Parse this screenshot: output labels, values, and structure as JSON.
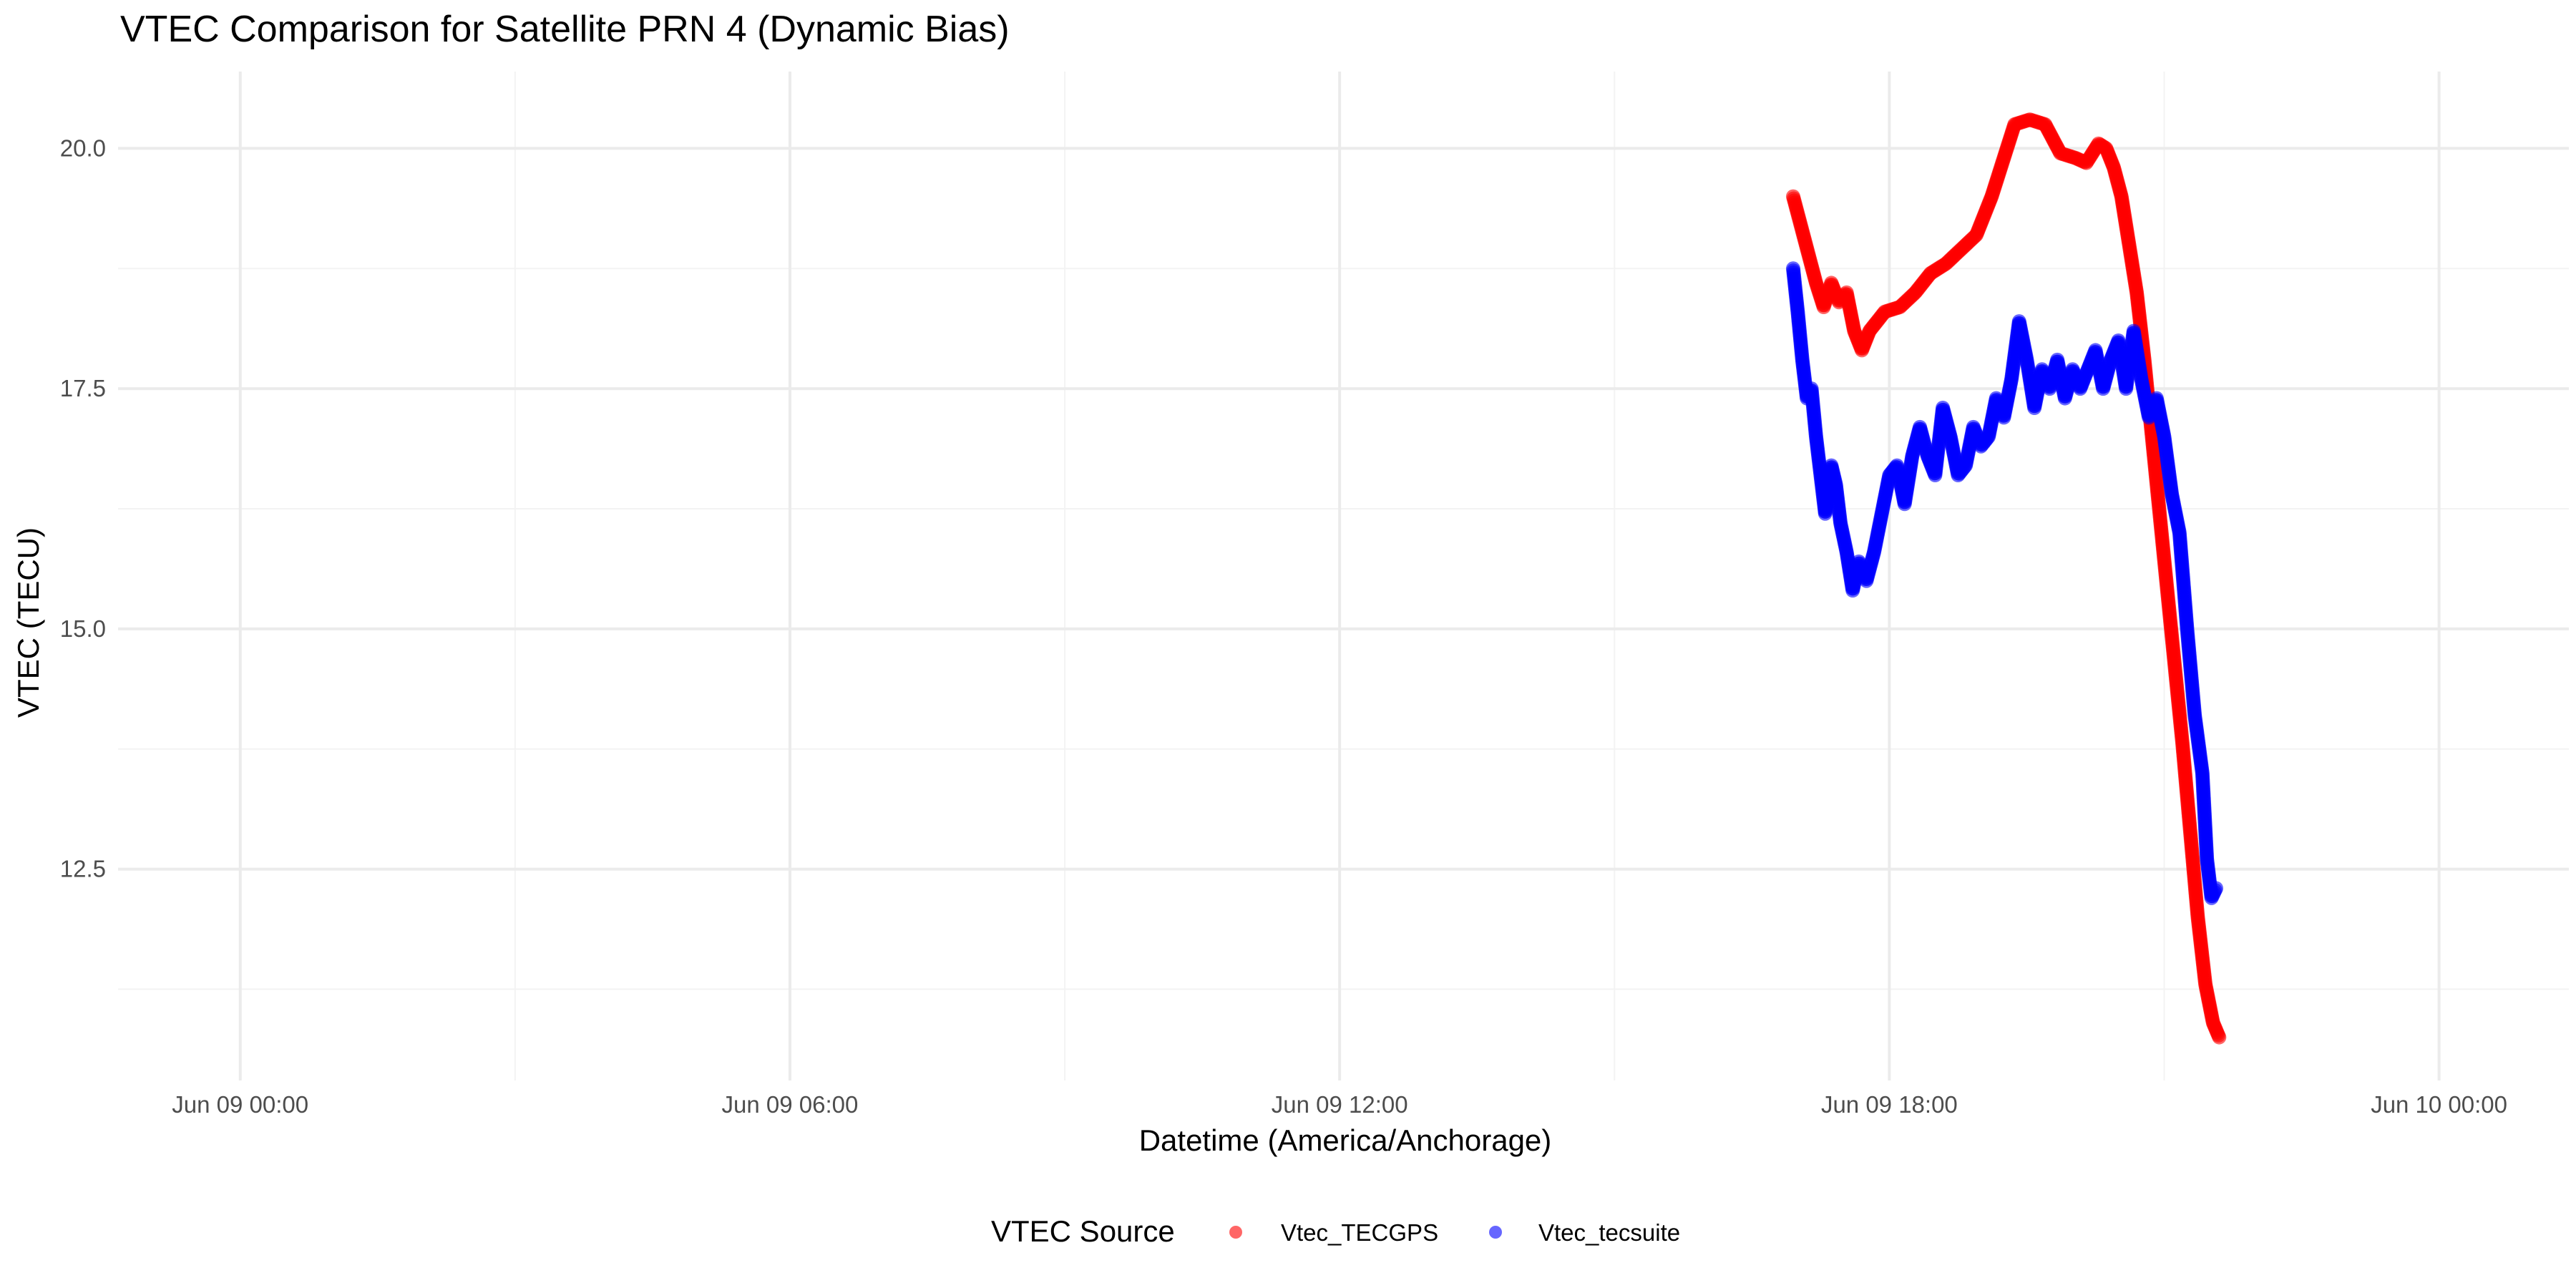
{
  "chart_data": {
    "type": "scatter",
    "title": "VTEC Comparison for Satellite PRN 4 (Dynamic Bias)",
    "xlabel": "Datetime (America/Anchorage)",
    "ylabel": "VTEC (TECU)",
    "x_axis_type": "datetime",
    "xlim": [
      "2024-06-08 22:40",
      "2024-06-10 01:25"
    ],
    "ylim": [
      10.3,
      20.8
    ],
    "x_ticks": [
      {
        "value": "2024-06-09 00:00",
        "label": "Jun 09 00:00"
      },
      {
        "value": "2024-06-09 06:00",
        "label": "Jun 09 06:00"
      },
      {
        "value": "2024-06-09 12:00",
        "label": "Jun 09 12:00"
      },
      {
        "value": "2024-06-09 18:00",
        "label": "Jun 09 18:00"
      },
      {
        "value": "2024-06-10 00:00",
        "label": "Jun 10 00:00"
      }
    ],
    "y_ticks": [
      {
        "value": 12.5,
        "label": "12.5"
      },
      {
        "value": 15.0,
        "label": "15.0"
      },
      {
        "value": 17.5,
        "label": "17.5"
      },
      {
        "value": 20.0,
        "label": "20.0"
      }
    ],
    "grid": true,
    "legend": {
      "title": "VTEC Source",
      "position": "bottom"
    },
    "series": [
      {
        "name": "Vtec_TECGPS",
        "color": "#ff0000",
        "points": [
          [
            "2024-06-09 16:57",
            19.5
          ],
          [
            "2024-06-09 17:02",
            19.2
          ],
          [
            "2024-06-09 17:07",
            18.9
          ],
          [
            "2024-06-09 17:12",
            18.6
          ],
          [
            "2024-06-09 17:17",
            18.35
          ],
          [
            "2024-06-09 17:22",
            18.6
          ],
          [
            "2024-06-09 17:27",
            18.4
          ],
          [
            "2024-06-09 17:32",
            18.5
          ],
          [
            "2024-06-09 17:37",
            18.1
          ],
          [
            "2024-06-09 17:42",
            17.9
          ],
          [
            "2024-06-09 17:47",
            18.1
          ],
          [
            "2024-06-09 17:52",
            18.2
          ],
          [
            "2024-06-09 17:57",
            18.3
          ],
          [
            "2024-06-09 18:07",
            18.35
          ],
          [
            "2024-06-09 18:17",
            18.5
          ],
          [
            "2024-06-09 18:27",
            18.7
          ],
          [
            "2024-06-09 18:37",
            18.8
          ],
          [
            "2024-06-09 18:47",
            18.95
          ],
          [
            "2024-06-09 18:57",
            19.1
          ],
          [
            "2024-06-09 19:07",
            19.5
          ],
          [
            "2024-06-09 19:17",
            20.0
          ],
          [
            "2024-06-09 19:22",
            20.25
          ],
          [
            "2024-06-09 19:32",
            20.3
          ],
          [
            "2024-06-09 19:42",
            20.25
          ],
          [
            "2024-06-09 19:52",
            19.95
          ],
          [
            "2024-06-09 20:02",
            19.9
          ],
          [
            "2024-06-09 20:09",
            19.85
          ],
          [
            "2024-06-09 20:17",
            20.05
          ],
          [
            "2024-06-09 20:22",
            20.0
          ],
          [
            "2024-06-09 20:27",
            19.8
          ],
          [
            "2024-06-09 20:32",
            19.5
          ],
          [
            "2024-06-09 20:37",
            19.0
          ],
          [
            "2024-06-09 20:42",
            18.5
          ],
          [
            "2024-06-09 20:47",
            17.8
          ],
          [
            "2024-06-09 20:52",
            17.0
          ],
          [
            "2024-06-09 20:57",
            16.2
          ],
          [
            "2024-06-09 21:02",
            15.4
          ],
          [
            "2024-06-09 21:07",
            14.6
          ],
          [
            "2024-06-09 21:12",
            13.8
          ],
          [
            "2024-06-09 21:17",
            12.9
          ],
          [
            "2024-06-09 21:22",
            12.0
          ],
          [
            "2024-06-09 21:27",
            11.3
          ],
          [
            "2024-06-09 21:32",
            10.9
          ],
          [
            "2024-06-09 21:36",
            10.75
          ]
        ]
      },
      {
        "name": "Vtec_tecsuite",
        "color": "#0000ff",
        "points": [
          [
            "2024-06-09 16:57",
            18.75
          ],
          [
            "2024-06-09 17:00",
            18.3
          ],
          [
            "2024-06-09 17:03",
            17.8
          ],
          [
            "2024-06-09 17:06",
            17.4
          ],
          [
            "2024-06-09 17:09",
            17.5
          ],
          [
            "2024-06-09 17:12",
            17.0
          ],
          [
            "2024-06-09 17:15",
            16.6
          ],
          [
            "2024-06-09 17:18",
            16.2
          ],
          [
            "2024-06-09 17:22",
            16.7
          ],
          [
            "2024-06-09 17:25",
            16.5
          ],
          [
            "2024-06-09 17:28",
            16.1
          ],
          [
            "2024-06-09 17:32",
            15.8
          ],
          [
            "2024-06-09 17:36",
            15.4
          ],
          [
            "2024-06-09 17:40",
            15.7
          ],
          [
            "2024-06-09 17:45",
            15.5
          ],
          [
            "2024-06-09 17:50",
            15.8
          ],
          [
            "2024-06-09 17:55",
            16.2
          ],
          [
            "2024-06-09 18:00",
            16.6
          ],
          [
            "2024-06-09 18:05",
            16.7
          ],
          [
            "2024-06-09 18:10",
            16.3
          ],
          [
            "2024-06-09 18:15",
            16.8
          ],
          [
            "2024-06-09 18:20",
            17.1
          ],
          [
            "2024-06-09 18:25",
            16.8
          ],
          [
            "2024-06-09 18:30",
            16.6
          ],
          [
            "2024-06-09 18:35",
            17.3
          ],
          [
            "2024-06-09 18:40",
            17.0
          ],
          [
            "2024-06-09 18:45",
            16.6
          ],
          [
            "2024-06-09 18:50",
            16.7
          ],
          [
            "2024-06-09 18:55",
            17.1
          ],
          [
            "2024-06-09 19:00",
            16.9
          ],
          [
            "2024-06-09 19:05",
            17.0
          ],
          [
            "2024-06-09 19:10",
            17.4
          ],
          [
            "2024-06-09 19:15",
            17.2
          ],
          [
            "2024-06-09 19:20",
            17.6
          ],
          [
            "2024-06-09 19:25",
            18.2
          ],
          [
            "2024-06-09 19:30",
            17.8
          ],
          [
            "2024-06-09 19:35",
            17.3
          ],
          [
            "2024-06-09 19:40",
            17.7
          ],
          [
            "2024-06-09 19:45",
            17.5
          ],
          [
            "2024-06-09 19:50",
            17.8
          ],
          [
            "2024-06-09 19:55",
            17.4
          ],
          [
            "2024-06-09 20:00",
            17.7
          ],
          [
            "2024-06-09 20:05",
            17.5
          ],
          [
            "2024-06-09 20:10",
            17.7
          ],
          [
            "2024-06-09 20:15",
            17.9
          ],
          [
            "2024-06-09 20:20",
            17.5
          ],
          [
            "2024-06-09 20:25",
            17.8
          ],
          [
            "2024-06-09 20:30",
            18.0
          ],
          [
            "2024-06-09 20:35",
            17.5
          ],
          [
            "2024-06-09 20:40",
            18.1
          ],
          [
            "2024-06-09 20:45",
            17.6
          ],
          [
            "2024-06-09 20:50",
            17.2
          ],
          [
            "2024-06-09 20:55",
            17.4
          ],
          [
            "2024-06-09 21:00",
            17.0
          ],
          [
            "2024-06-09 21:05",
            16.4
          ],
          [
            "2024-06-09 21:10",
            16.0
          ],
          [
            "2024-06-09 21:15",
            15.0
          ],
          [
            "2024-06-09 21:20",
            14.1
          ],
          [
            "2024-06-09 21:25",
            13.5
          ],
          [
            "2024-06-09 21:28",
            12.6
          ],
          [
            "2024-06-09 21:31",
            12.2
          ],
          [
            "2024-06-09 21:34",
            12.3
          ]
        ]
      }
    ]
  }
}
